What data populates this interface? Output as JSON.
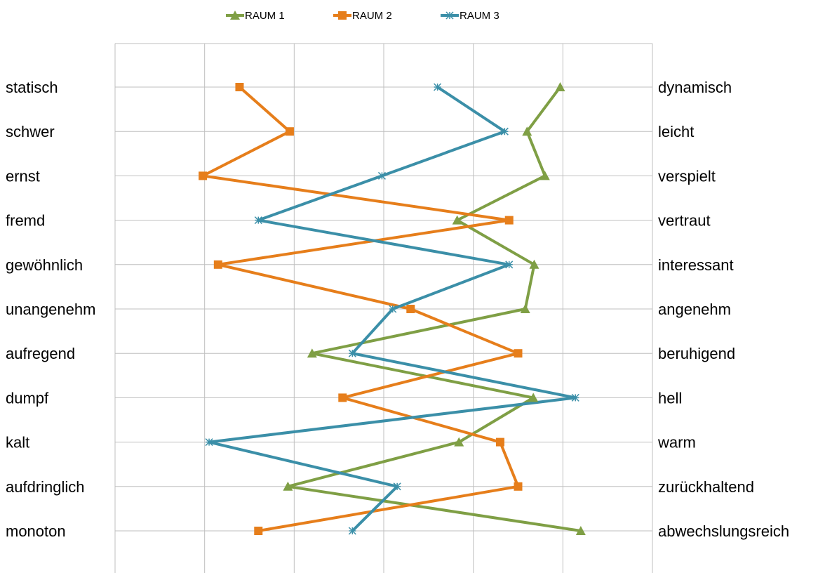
{
  "chart_data": {
    "type": "line",
    "orientation": "horizontal-profile",
    "left_labels": [
      "statisch",
      "schwer",
      "ernst",
      "fremd",
      "gewöhnlich",
      "unangenehm",
      "aufregend",
      "dumpf",
      "kalt",
      "aufdringlich",
      "monoton"
    ],
    "right_labels": [
      "dynamisch",
      "leicht",
      "verspielt",
      "vertraut",
      "interessant",
      "angenehm",
      "beruhigend",
      "hell",
      "warm",
      "zurückhaltend",
      "abwechslungsreich"
    ],
    "xlim": [
      0,
      6
    ],
    "grid": true,
    "legend_position": "top",
    "series": [
      {
        "name": "RAUM 1",
        "color": "#7f9f45",
        "marker": "triangle",
        "values": [
          4.97,
          4.6,
          4.8,
          3.82,
          4.68,
          4.58,
          2.2,
          4.67,
          3.84,
          1.93,
          5.2
        ]
      },
      {
        "name": "RAUM 2",
        "color": "#e67e1b",
        "marker": "square",
        "values": [
          1.39,
          1.95,
          0.98,
          4.4,
          1.15,
          3.3,
          4.5,
          2.54,
          4.3,
          4.5,
          1.6
        ]
      },
      {
        "name": "RAUM 3",
        "color": "#3b8fa8",
        "marker": "x",
        "values": [
          3.6,
          4.35,
          2.98,
          1.6,
          4.4,
          3.1,
          2.65,
          5.14,
          1.05,
          3.15,
          2.65
        ]
      }
    ]
  }
}
